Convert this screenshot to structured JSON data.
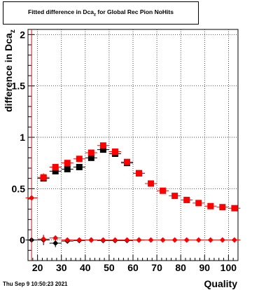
{
  "title": {
    "main": "Fitted difference in Dca",
    "sub": "z",
    "rest": " for Global Rec Pion NoHits"
  },
  "footer": {
    "date": "Thu Sep  9 10:50:23 2021"
  },
  "chart_data": {
    "type": "scatter",
    "xlabel": "Quality",
    "ylabel_main": "difference in Dca",
    "ylabel_sub": "z",
    "xlim": [
      16,
      104
    ],
    "ylim": [
      -0.2,
      2.05
    ],
    "grid": true,
    "xticks": [
      20,
      30,
      40,
      50,
      60,
      70,
      80,
      90,
      100
    ],
    "yticks": [
      0,
      0.5,
      1,
      1.5,
      2
    ],
    "ytick_labels": [
      "0",
      "0.5",
      "1",
      "1.5",
      "2"
    ],
    "series": [
      {
        "marker": "square",
        "color": "#000000",
        "x": [
          22.5,
          27.5,
          32.5,
          37.5,
          42.5,
          47.5,
          52.5,
          57.5,
          62.5
        ],
        "y": [
          0.6,
          0.67,
          0.69,
          0.71,
          0.8,
          0.88,
          0.84,
          0.75,
          0.65
        ],
        "err": [
          0.03,
          0.03,
          0.02,
          0.02,
          0.02,
          0.02,
          0.02,
          0.02,
          0.02
        ]
      },
      {
        "marker": "square",
        "color": "#ff0000",
        "x": [
          22.5,
          27.5,
          32.5,
          37.5,
          42.5,
          47.5,
          52.5,
          57.5,
          62.5,
          67.5,
          72.5,
          77.5,
          82.5,
          87.5,
          92.5,
          97.5,
          102.5
        ],
        "y": [
          0.61,
          0.71,
          0.75,
          0.79,
          0.85,
          0.92,
          0.86,
          0.76,
          0.65,
          0.55,
          0.48,
          0.43,
          0.39,
          0.36,
          0.33,
          0.32,
          0.31
        ],
        "err": [
          0.04,
          0.03,
          0.03,
          0.02,
          0.02,
          0.02,
          0.02,
          0.02,
          0.02,
          0.02,
          0.02,
          0.02,
          0.02,
          0.02,
          0.02,
          0.02,
          0.02
        ]
      },
      {
        "marker": "diamond",
        "color": "#000000",
        "x": [
          17.5,
          22.5,
          27.5,
          32.5,
          37.5,
          42.5,
          47.5,
          52.5,
          57.5,
          62.5
        ],
        "y": [
          0.0,
          0.0,
          -0.03,
          -0.01,
          -0.005,
          0.0,
          -0.005,
          -0.005,
          -0.005,
          0.0
        ],
        "err": [
          0.02,
          0.05,
          0.04,
          0.01,
          0.01,
          0.01,
          0.01,
          0.01,
          0.01,
          0.01
        ]
      },
      {
        "marker": "diamond",
        "color": "#ff0000",
        "x": [
          17.5,
          22.5,
          27.5,
          32.5,
          37.5,
          42.5,
          47.5,
          52.5,
          57.5,
          62.5,
          67.5,
          72.5,
          77.5,
          82.5,
          87.5,
          92.5,
          97.5,
          102.5
        ],
        "y": [
          0.41,
          0.01,
          0.02,
          0.0,
          0.0,
          0.0,
          0.0,
          0.0,
          0.0,
          0.0,
          0.0,
          0.0,
          0.0,
          0.0,
          0.0,
          0.0,
          0.0,
          0.0
        ],
        "err": [
          1.85,
          0.04,
          0.02,
          0.01,
          0.01,
          0.01,
          0.01,
          0.01,
          0.01,
          0.01,
          0.01,
          0.01,
          0.01,
          0.01,
          0.01,
          0.01,
          0.01,
          0.01
        ]
      }
    ]
  }
}
